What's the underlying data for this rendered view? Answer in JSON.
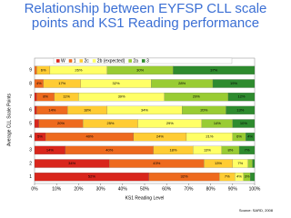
{
  "chart_data": {
    "type": "stacked-bar-horizontal",
    "title": "Relationship between EYFSP CLL scale points and KS1 Reading performance",
    "x_label": "KS1 Reading Level",
    "y_label": "Average CLL Scale Points",
    "source": "Source: SARD, 2008",
    "categories": [
      "1",
      "2",
      "3",
      "4",
      "5",
      "6",
      "7",
      "8",
      "9"
    ],
    "series": [
      {
        "name": "W",
        "color": "#d9261c",
        "values": [
          52,
          34,
          14,
          5,
          2,
          1,
          1,
          0,
          0
        ],
        "value_labels": [
          "52%",
          "34%",
          "14%",
          "5%",
          null,
          null,
          null,
          null,
          null
        ]
      },
      {
        "name": "1",
        "color": "#ee6a1e",
        "values": [
          32,
          43,
          40,
          40,
          20,
          14,
          8,
          4,
          1
        ],
        "value_labels": [
          "32%",
          "43%",
          "40%",
          "40%",
          "20%",
          "14%",
          "8%",
          "4%",
          null
        ]
      },
      {
        "name": "2c",
        "color": "#ffcc33",
        "values": [
          7,
          13,
          18,
          24,
          25,
          18,
          11,
          17,
          6
        ],
        "value_labels": [
          "7%",
          "13%",
          "18%",
          "24%",
          "25%",
          "18%",
          "11%",
          "17%",
          "6%"
        ]
      },
      {
        "name": "2b (expected)",
        "color": "#ffff66",
        "values": [
          4,
          7,
          13,
          21,
          29,
          34,
          39,
          32,
          26
        ],
        "value_labels": [
          "4%",
          "7%",
          "13%",
          "21%",
          "29%",
          "34%",
          "39%",
          "32%",
          "26%"
        ]
      },
      {
        "name": "2a",
        "color": "#99cc33",
        "values": [
          3,
          2,
          8,
          6,
          14,
          20,
          29,
          28,
          30
        ],
        "value_labels": [
          "3%",
          null,
          "8%",
          "6%",
          "14%",
          "20%",
          "29%",
          "28%",
          "30%"
        ]
      },
      {
        "name": "3",
        "color": "#2e8b2e",
        "values": [
          2,
          1,
          7,
          4,
          10,
          13,
          12,
          19,
          37
        ],
        "value_labels": [
          null,
          null,
          "7%",
          "4%",
          "10%",
          "13%",
          "12%",
          "19%",
          "37%"
        ]
      }
    ],
    "xlim": [
      0,
      100
    ],
    "xticks": [
      {
        "value": 0,
        "label": "0%"
      },
      {
        "value": 10,
        "label": "10%"
      },
      {
        "value": 20,
        "label": "20%"
      },
      {
        "value": 30,
        "label": "30%"
      },
      {
        "value": 40,
        "label": "40%"
      },
      {
        "value": 50,
        "label": "50%"
      },
      {
        "value": 60,
        "label": "60%"
      },
      {
        "value": 70,
        "label": "70%"
      },
      {
        "value": 80,
        "label": "80%"
      },
      {
        "value": 90,
        "label": "90%"
      },
      {
        "value": 100,
        "label": "100%"
      }
    ],
    "legend": "top"
  }
}
